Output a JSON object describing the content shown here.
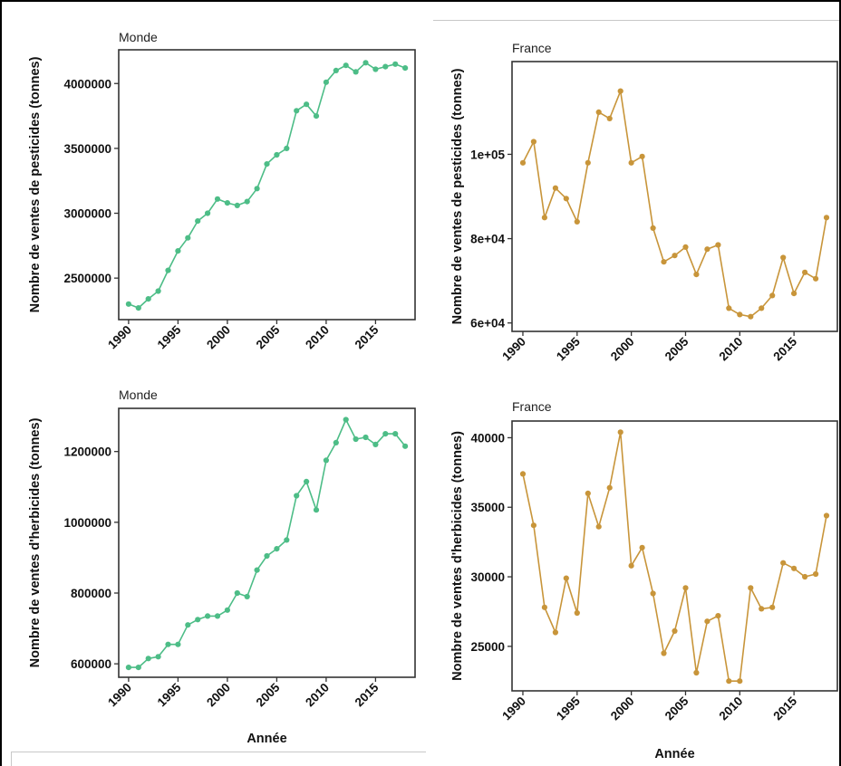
{
  "chart_data": [
    {
      "type": "line",
      "title": "Monde",
      "ylabel": "Nombre de ventes de pesticides (tonnes)",
      "xlabel": "",
      "color": "#4dbd87",
      "xlim": [
        1989,
        2019
      ],
      "ylim": [
        2180000,
        4260000
      ],
      "xticks": [
        1990,
        1995,
        2000,
        2005,
        2010,
        2015
      ],
      "yticks": [
        2500000,
        3000000,
        3500000,
        4000000
      ],
      "ytick_labels": [
        "2500000",
        "3000000",
        "3500000",
        "4000000"
      ],
      "grid": false,
      "series": [
        {
          "x": [
            1990,
            1991,
            1992,
            1993,
            1994,
            1995,
            1996,
            1997,
            1998,
            1999,
            2000,
            2001,
            2002,
            2003,
            2004,
            2005,
            2006,
            2007,
            2008,
            2009,
            2010,
            2011,
            2012,
            2013,
            2014,
            2015,
            2016,
            2017,
            2018
          ],
          "y": [
            2300000,
            2270000,
            2340000,
            2400000,
            2560000,
            2710000,
            2810000,
            2940000,
            3000000,
            3110000,
            3080000,
            3060000,
            3090000,
            3190000,
            3380000,
            3450000,
            3500000,
            3790000,
            3840000,
            3750000,
            4010000,
            4100000,
            4140000,
            4090000,
            4160000,
            4110000,
            4130000,
            4150000,
            4120000
          ]
        }
      ]
    },
    {
      "type": "line",
      "title": "France",
      "ylabel": "Nombre de ventes de pesticides (tonnes)",
      "xlabel": "",
      "color": "#c8953a",
      "xlim": [
        1989,
        2019
      ],
      "ylim": [
        58000,
        122000
      ],
      "xticks": [
        1990,
        1995,
        2000,
        2005,
        2010,
        2015
      ],
      "yticks": [
        60000,
        80000,
        100000
      ],
      "ytick_labels": [
        "6e+04",
        "8e+04",
        "1e+05"
      ],
      "grid": false,
      "series": [
        {
          "x": [
            1990,
            1991,
            1992,
            1993,
            1994,
            1995,
            1996,
            1997,
            1998,
            1999,
            2000,
            2001,
            2002,
            2003,
            2004,
            2005,
            2006,
            2007,
            2008,
            2009,
            2010,
            2011,
            2012,
            2013,
            2014,
            2015,
            2016,
            2017,
            2018
          ],
          "y": [
            98000,
            103000,
            85000,
            92000,
            89500,
            84000,
            98000,
            110000,
            108500,
            115000,
            98000,
            99500,
            82500,
            74500,
            76000,
            78000,
            71500,
            77500,
            78500,
            63500,
            62000,
            61500,
            63500,
            66500,
            75500,
            67000,
            72000,
            70500,
            85000
          ]
        }
      ]
    },
    {
      "type": "line",
      "title": "Monde",
      "ylabel": "Nombre de ventes d'herbicides (tonnes)",
      "xlabel": "Année",
      "color": "#4dbd87",
      "xlim": [
        1989,
        2019
      ],
      "ylim": [
        562000,
        1322000
      ],
      "xticks": [
        1990,
        1995,
        2000,
        2005,
        2010,
        2015
      ],
      "yticks": [
        600000,
        800000,
        1000000,
        1200000
      ],
      "ytick_labels": [
        "600000",
        "800000",
        "1000000",
        "1200000"
      ],
      "grid": false,
      "series": [
        {
          "x": [
            1990,
            1991,
            1992,
            1993,
            1994,
            1995,
            1996,
            1997,
            1998,
            1999,
            2000,
            2001,
            2002,
            2003,
            2004,
            2005,
            2006,
            2007,
            2008,
            2009,
            2010,
            2011,
            2012,
            2013,
            2014,
            2015,
            2016,
            2017,
            2018
          ],
          "y": [
            590000,
            590000,
            615000,
            620000,
            655000,
            655000,
            710000,
            725000,
            735000,
            735000,
            752000,
            800000,
            790000,
            865000,
            905000,
            925000,
            950000,
            1075000,
            1115000,
            1035000,
            1175000,
            1225000,
            1290000,
            1235000,
            1240000,
            1220000,
            1250000,
            1250000,
            1215000
          ]
        }
      ]
    },
    {
      "type": "line",
      "title": "France",
      "ylabel": "Nombre de ventes d'herbicides (tonnes)",
      "xlabel": "Année",
      "color": "#c8953a",
      "xlim": [
        1989,
        2019
      ],
      "ylim": [
        21800,
        41200
      ],
      "xticks": [
        1990,
        1995,
        2000,
        2005,
        2010,
        2015
      ],
      "yticks": [
        25000,
        30000,
        35000,
        40000
      ],
      "ytick_labels": [
        "25000",
        "30000",
        "35000",
        "40000"
      ],
      "grid": false,
      "series": [
        {
          "x": [
            1990,
            1991,
            1992,
            1993,
            1994,
            1995,
            1996,
            1997,
            1998,
            1999,
            2000,
            2001,
            2002,
            2003,
            2004,
            2005,
            2006,
            2007,
            2008,
            2009,
            2010,
            2011,
            2012,
            2013,
            2014,
            2015,
            2016,
            2017,
            2018
          ],
          "y": [
            37400,
            33700,
            27800,
            26000,
            29900,
            27400,
            36000,
            33600,
            36400,
            40400,
            30800,
            32100,
            28800,
            24500,
            26100,
            29200,
            23100,
            26800,
            27200,
            22500,
            22500,
            29200,
            27700,
            27800,
            31000,
            30600,
            30000,
            30200,
            34400
          ]
        }
      ]
    }
  ]
}
